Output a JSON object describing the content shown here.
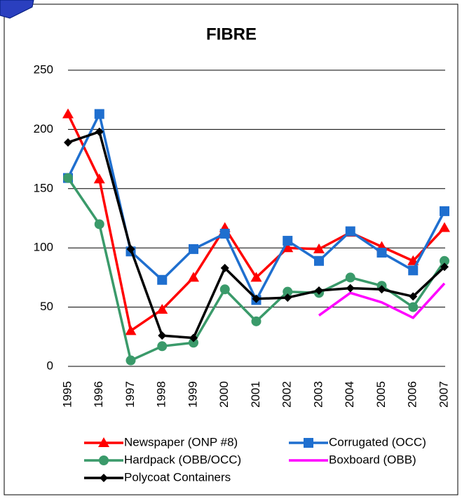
{
  "chart_data": {
    "type": "line",
    "title": "FIBRE",
    "categories": [
      "1995",
      "1996",
      "1997",
      "1998",
      "1999",
      "2000",
      "2001",
      "2002",
      "2003",
      "2004",
      "2005",
      "2006",
      "2007"
    ],
    "series": [
      {
        "name": "Newspaper (ONP #8)",
        "color": "#ff0000",
        "marker": "triangle",
        "values": [
          213,
          158,
          30,
          48,
          75,
          117,
          75,
          100,
          99,
          113,
          101,
          89,
          117
        ]
      },
      {
        "name": "Corrugated (OCC)",
        "color": "#1f6fcf",
        "marker": "square",
        "values": [
          159,
          213,
          97,
          73,
          99,
          112,
          56,
          106,
          89,
          114,
          96,
          81,
          131
        ]
      },
      {
        "name": "Hardpack (OBB/OCC)",
        "color": "#3a9a6a",
        "marker": "circle",
        "values": [
          159,
          120,
          5,
          17,
          20,
          65,
          38,
          63,
          62,
          75,
          68,
          50,
          89
        ]
      },
      {
        "name": "Boxboard (OBB)",
        "color": "#ff00ff",
        "marker": "none",
        "values": [
          null,
          null,
          null,
          null,
          null,
          null,
          null,
          null,
          43,
          62,
          54,
          41,
          70
        ]
      },
      {
        "name": "Polycoat Containers",
        "color": "#000000",
        "marker": "diamond",
        "values": [
          189,
          198,
          99,
          26,
          24,
          83,
          57,
          58,
          64,
          66,
          65,
          59,
          84
        ]
      }
    ],
    "ylim": [
      0,
      250
    ],
    "yticks": [
      0,
      50,
      100,
      150,
      200,
      250
    ],
    "grid": true
  }
}
